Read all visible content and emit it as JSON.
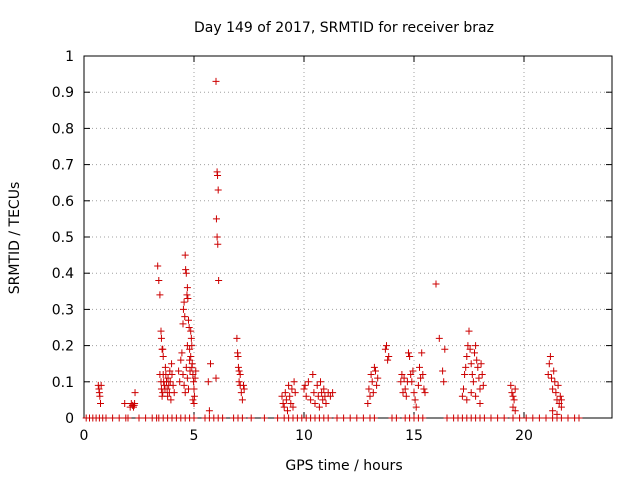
{
  "chart_data": {
    "type": "scatter",
    "title": "Day 149 of 2017, SRMTID for receiver braz",
    "xlabel": "GPS time / hours",
    "ylabel": "SRMTID / TECUs",
    "xlim": [
      0,
      24
    ],
    "ylim": [
      0,
      1
    ],
    "xticks": [
      0,
      5,
      10,
      15,
      20
    ],
    "xtick_labels": [
      "0",
      "5",
      "10",
      "15",
      "20"
    ],
    "yticks": [
      0,
      0.1,
      0.2,
      0.3,
      0.4,
      0.5,
      0.6,
      0.7,
      0.8,
      0.9,
      1
    ],
    "ytick_labels": [
      "0",
      "0.1",
      "0.2",
      "0.3",
      "0.4",
      "0.5",
      "0.6",
      "0.7",
      "0.8",
      "0.9",
      "1"
    ],
    "grid": true,
    "marker": "+",
    "color": "#cc0000",
    "series": [
      {
        "name": "SRMTID",
        "points": [
          [
            0.1,
            0.0
          ],
          [
            0.25,
            0.0
          ],
          [
            0.4,
            0.0
          ],
          [
            0.55,
            0.0
          ],
          [
            0.7,
            0.0
          ],
          [
            0.85,
            0.0
          ],
          [
            0.65,
            0.09
          ],
          [
            0.68,
            0.08
          ],
          [
            0.7,
            0.07
          ],
          [
            0.72,
            0.06
          ],
          [
            0.75,
            0.04
          ],
          [
            0.78,
            0.09
          ],
          [
            1.0,
            0.0
          ],
          [
            1.3,
            0.0
          ],
          [
            1.6,
            0.0
          ],
          [
            1.9,
            0.0
          ],
          [
            2.0,
            0.0
          ],
          [
            1.85,
            0.04
          ],
          [
            2.1,
            0.03
          ],
          [
            2.15,
            0.04
          ],
          [
            2.2,
            0.035
          ],
          [
            2.25,
            0.03
          ],
          [
            2.3,
            0.04
          ],
          [
            2.32,
            0.07
          ],
          [
            2.28,
            0.035
          ],
          [
            2.5,
            0.0
          ],
          [
            2.8,
            0.0
          ],
          [
            3.1,
            0.0
          ],
          [
            3.3,
            0.0
          ],
          [
            3.35,
            0.42
          ],
          [
            3.4,
            0.38
          ],
          [
            3.45,
            0.34
          ],
          [
            3.5,
            0.24
          ],
          [
            3.52,
            0.22
          ],
          [
            3.55,
            0.19
          ],
          [
            3.58,
            0.19
          ],
          [
            3.6,
            0.17
          ],
          [
            3.45,
            0.12
          ],
          [
            3.5,
            0.1
          ],
          [
            3.52,
            0.08
          ],
          [
            3.55,
            0.06
          ],
          [
            3.58,
            0.07
          ],
          [
            3.6,
            0.12
          ],
          [
            3.62,
            0.1
          ],
          [
            3.65,
            0.09
          ],
          [
            3.68,
            0.08
          ],
          [
            3.7,
            0.14
          ],
          [
            3.72,
            0.12
          ],
          [
            3.75,
            0.1
          ],
          [
            3.78,
            0.08
          ],
          [
            3.8,
            0.06
          ],
          [
            3.82,
            0.11
          ],
          [
            3.85,
            0.09
          ],
          [
            3.88,
            0.07
          ],
          [
            3.9,
            0.13
          ],
          [
            3.92,
            0.1
          ],
          [
            3.95,
            0.05
          ],
          [
            3.98,
            0.15
          ],
          [
            4.0,
            0.12
          ],
          [
            4.05,
            0.09
          ],
          [
            4.1,
            0.07
          ],
          [
            3.4,
            0.0
          ],
          [
            3.6,
            0.0
          ],
          [
            3.8,
            0.0
          ],
          [
            4.0,
            0.0
          ],
          [
            4.2,
            0.0
          ],
          [
            4.4,
            0.0
          ],
          [
            4.6,
            0.0
          ],
          [
            4.8,
            0.0
          ],
          [
            5.0,
            0.0
          ],
          [
            4.3,
            0.13
          ],
          [
            4.35,
            0.1
          ],
          [
            4.4,
            0.16
          ],
          [
            4.45,
            0.18
          ],
          [
            4.5,
            0.26
          ],
          [
            4.52,
            0.3
          ],
          [
            4.55,
            0.32
          ],
          [
            4.58,
            0.28
          ],
          [
            4.6,
            0.45
          ],
          [
            4.62,
            0.41
          ],
          [
            4.65,
            0.4
          ],
          [
            4.68,
            0.34
          ],
          [
            4.7,
            0.36
          ],
          [
            4.72,
            0.33
          ],
          [
            4.75,
            0.27
          ],
          [
            4.78,
            0.25
          ],
          [
            4.5,
            0.12
          ],
          [
            4.55,
            0.09
          ],
          [
            4.6,
            0.07
          ],
          [
            4.65,
            0.14
          ],
          [
            4.7,
            0.11
          ],
          [
            4.75,
            0.08
          ],
          [
            4.8,
            0.16
          ],
          [
            4.82,
            0.13
          ],
          [
            4.85,
            0.24
          ],
          [
            4.88,
            0.22
          ],
          [
            4.9,
            0.2
          ],
          [
            4.92,
            0.15
          ],
          [
            4.95,
            0.12
          ],
          [
            4.98,
            0.1
          ],
          [
            5.0,
            0.08
          ],
          [
            5.02,
            0.06
          ],
          [
            4.95,
            0.05
          ],
          [
            5.0,
            0.04
          ],
          [
            4.85,
            0.17
          ],
          [
            4.9,
            0.14
          ],
          [
            5.05,
            0.11
          ],
          [
            5.08,
            0.13
          ],
          [
            4.7,
            0.2
          ],
          [
            4.8,
            0.19
          ],
          [
            5.5,
            0.0
          ],
          [
            5.7,
            0.0
          ],
          [
            5.9,
            0.0
          ],
          [
            6.1,
            0.0
          ],
          [
            6.3,
            0.0
          ],
          [
            5.65,
            0.1
          ],
          [
            5.7,
            0.02
          ],
          [
            5.75,
            0.15
          ],
          [
            6.0,
            0.93
          ],
          [
            6.05,
            0.68
          ],
          [
            6.07,
            0.67
          ],
          [
            6.1,
            0.63
          ],
          [
            6.02,
            0.55
          ],
          [
            6.05,
            0.5
          ],
          [
            6.08,
            0.48
          ],
          [
            6.12,
            0.38
          ],
          [
            6.0,
            0.11
          ],
          [
            6.8,
            0.0
          ],
          [
            7.0,
            0.0
          ],
          [
            7.2,
            0.0
          ],
          [
            6.95,
            0.22
          ],
          [
            6.98,
            0.18
          ],
          [
            7.0,
            0.17
          ],
          [
            7.02,
            0.14
          ],
          [
            7.05,
            0.1
          ],
          [
            7.1,
            0.09
          ],
          [
            7.15,
            0.07
          ],
          [
            7.2,
            0.05
          ],
          [
            7.05,
            0.13
          ],
          [
            7.1,
            0.12
          ],
          [
            7.25,
            0.09
          ],
          [
            7.28,
            0.08
          ],
          [
            7.6,
            0.0
          ],
          [
            8.2,
            0.0
          ],
          [
            8.8,
            0.0
          ],
          [
            9.0,
            0.06
          ],
          [
            9.05,
            0.04
          ],
          [
            9.1,
            0.03
          ],
          [
            9.15,
            0.07
          ],
          [
            9.2,
            0.05
          ],
          [
            9.25,
            0.02
          ],
          [
            9.3,
            0.09
          ],
          [
            9.35,
            0.06
          ],
          [
            9.4,
            0.04
          ],
          [
            9.45,
            0.08
          ],
          [
            9.5,
            0.03
          ],
          [
            9.55,
            0.1
          ],
          [
            9.6,
            0.07
          ],
          [
            9.1,
            0.0
          ],
          [
            9.3,
            0.0
          ],
          [
            9.5,
            0.0
          ],
          [
            9.7,
            0.0
          ],
          [
            9.9,
            0.0
          ],
          [
            10.1,
            0.0
          ],
          [
            10.3,
            0.0
          ],
          [
            10.0,
            0.08
          ],
          [
            10.05,
            0.09
          ],
          [
            10.1,
            0.06
          ],
          [
            10.2,
            0.1
          ],
          [
            10.3,
            0.05
          ],
          [
            10.4,
            0.12
          ],
          [
            10.45,
            0.07
          ],
          [
            10.5,
            0.04
          ],
          [
            10.6,
            0.09
          ],
          [
            10.65,
            0.06
          ],
          [
            10.7,
            0.03
          ],
          [
            10.75,
            0.1
          ],
          [
            10.8,
            0.07
          ],
          [
            10.85,
            0.05
          ],
          [
            10.9,
            0.08
          ],
          [
            10.95,
            0.06
          ],
          [
            11.0,
            0.04
          ],
          [
            11.1,
            0.07
          ],
          [
            11.2,
            0.06
          ],
          [
            11.3,
            0.07
          ],
          [
            10.5,
            0.0
          ],
          [
            10.7,
            0.0
          ],
          [
            10.9,
            0.0
          ],
          [
            11.1,
            0.0
          ],
          [
            11.5,
            0.0
          ],
          [
            11.8,
            0.0
          ],
          [
            12.1,
            0.0
          ],
          [
            12.4,
            0.0
          ],
          [
            12.7,
            0.0
          ],
          [
            12.9,
            0.04
          ],
          [
            12.95,
            0.08
          ],
          [
            13.0,
            0.06
          ],
          [
            13.05,
            0.12
          ],
          [
            13.1,
            0.1
          ],
          [
            13.15,
            0.07
          ],
          [
            13.2,
            0.14
          ],
          [
            13.25,
            0.13
          ],
          [
            13.3,
            0.09
          ],
          [
            13.35,
            0.11
          ],
          [
            13.0,
            0.0
          ],
          [
            13.2,
            0.0
          ],
          [
            13.7,
            0.19
          ],
          [
            13.75,
            0.2
          ],
          [
            13.8,
            0.16
          ],
          [
            13.85,
            0.17
          ],
          [
            14.0,
            0.0
          ],
          [
            14.2,
            0.0
          ],
          [
            14.4,
            0.1
          ],
          [
            14.45,
            0.12
          ],
          [
            14.5,
            0.07
          ],
          [
            14.55,
            0.11
          ],
          [
            14.6,
            0.08
          ],
          [
            14.65,
            0.06
          ],
          [
            14.7,
            0.1
          ],
          [
            14.75,
            0.18
          ],
          [
            14.8,
            0.17
          ],
          [
            14.85,
            0.12
          ],
          [
            14.9,
            0.1
          ],
          [
            14.95,
            0.13
          ],
          [
            15.0,
            0.07
          ],
          [
            15.05,
            0.05
          ],
          [
            15.1,
            0.03
          ],
          [
            15.2,
            0.09
          ],
          [
            15.25,
            0.14
          ],
          [
            15.3,
            0.11
          ],
          [
            15.35,
            0.18
          ],
          [
            15.4,
            0.12
          ],
          [
            15.45,
            0.08
          ],
          [
            15.5,
            0.07
          ],
          [
            14.6,
            0.0
          ],
          [
            14.8,
            0.0
          ],
          [
            15.0,
            0.0
          ],
          [
            15.2,
            0.0
          ],
          [
            15.4,
            0.0
          ],
          [
            16.0,
            0.37
          ],
          [
            16.15,
            0.22
          ],
          [
            16.3,
            0.13
          ],
          [
            16.4,
            0.19
          ],
          [
            16.35,
            0.1
          ],
          [
            16.5,
            0.0
          ],
          [
            16.8,
            0.0
          ],
          [
            17.0,
            0.0
          ],
          [
            17.2,
            0.0
          ],
          [
            17.2,
            0.06
          ],
          [
            17.25,
            0.08
          ],
          [
            17.3,
            0.12
          ],
          [
            17.35,
            0.14
          ],
          [
            17.4,
            0.17
          ],
          [
            17.45,
            0.2
          ],
          [
            17.5,
            0.24
          ],
          [
            17.55,
            0.19
          ],
          [
            17.6,
            0.15
          ],
          [
            17.65,
            0.12
          ],
          [
            17.7,
            0.1
          ],
          [
            17.75,
            0.18
          ],
          [
            17.8,
            0.2
          ],
          [
            17.85,
            0.16
          ],
          [
            17.9,
            0.14
          ],
          [
            17.95,
            0.11
          ],
          [
            18.0,
            0.08
          ],
          [
            18.05,
            0.15
          ],
          [
            18.1,
            0.12
          ],
          [
            18.15,
            0.09
          ],
          [
            17.4,
            0.05
          ],
          [
            17.6,
            0.07
          ],
          [
            17.8,
            0.06
          ],
          [
            18.0,
            0.04
          ],
          [
            17.4,
            0.0
          ],
          [
            17.6,
            0.0
          ],
          [
            17.8,
            0.0
          ],
          [
            18.0,
            0.0
          ],
          [
            18.2,
            0.0
          ],
          [
            18.5,
            0.0
          ],
          [
            18.8,
            0.0
          ],
          [
            19.1,
            0.0
          ],
          [
            19.4,
            0.09
          ],
          [
            19.45,
            0.07
          ],
          [
            19.5,
            0.06
          ],
          [
            19.55,
            0.05
          ],
          [
            19.6,
            0.08
          ],
          [
            19.5,
            0.03
          ],
          [
            19.6,
            0.02
          ],
          [
            19.5,
            0.0
          ],
          [
            19.8,
            0.0
          ],
          [
            20.1,
            0.0
          ],
          [
            20.4,
            0.0
          ],
          [
            20.7,
            0.0
          ],
          [
            21.0,
            0.0
          ],
          [
            21.1,
            0.12
          ],
          [
            21.15,
            0.15
          ],
          [
            21.2,
            0.17
          ],
          [
            21.25,
            0.11
          ],
          [
            21.3,
            0.08
          ],
          [
            21.35,
            0.13
          ],
          [
            21.4,
            0.1
          ],
          [
            21.45,
            0.07
          ],
          [
            21.5,
            0.05
          ],
          [
            21.55,
            0.09
          ],
          [
            21.6,
            0.04
          ],
          [
            21.65,
            0.06
          ],
          [
            21.7,
            0.03
          ],
          [
            21.3,
            0.02
          ],
          [
            21.5,
            0.01
          ],
          [
            21.7,
            0.05
          ],
          [
            21.3,
            0.0
          ],
          [
            21.5,
            0.0
          ],
          [
            21.7,
            0.0
          ],
          [
            22.0,
            0.0
          ],
          [
            22.3,
            0.0
          ],
          [
            22.5,
            0.0
          ]
        ]
      }
    ]
  }
}
